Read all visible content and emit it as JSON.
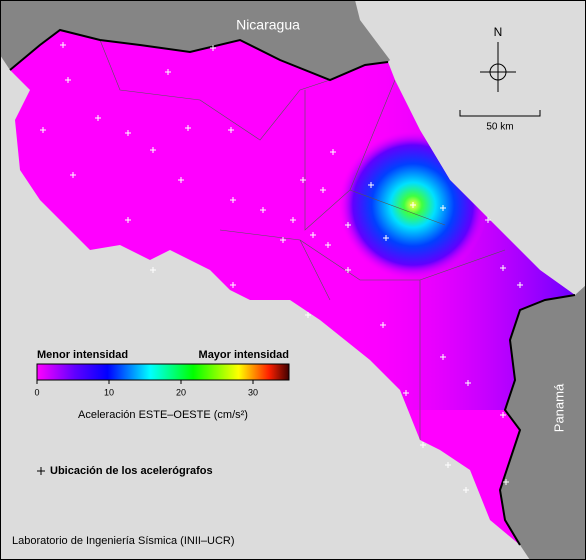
{
  "countries": [
    "Nicaragua",
    "Panamá"
  ],
  "north": "N",
  "scale_bar": "50 km",
  "colorbar": {
    "min_label": "Menor intensidad",
    "max_label": "Mayor intensidad",
    "range": [
      0,
      35
    ],
    "ticks": [
      0,
      10,
      20,
      30
    ],
    "title": "Aceleración ESTE–OESTE (cm/s²)"
  },
  "legend": "Ubicación de los acelerógrafos",
  "credit": "Laboratorio de Ingeniería Sísmica (INII–UCR)"
}
